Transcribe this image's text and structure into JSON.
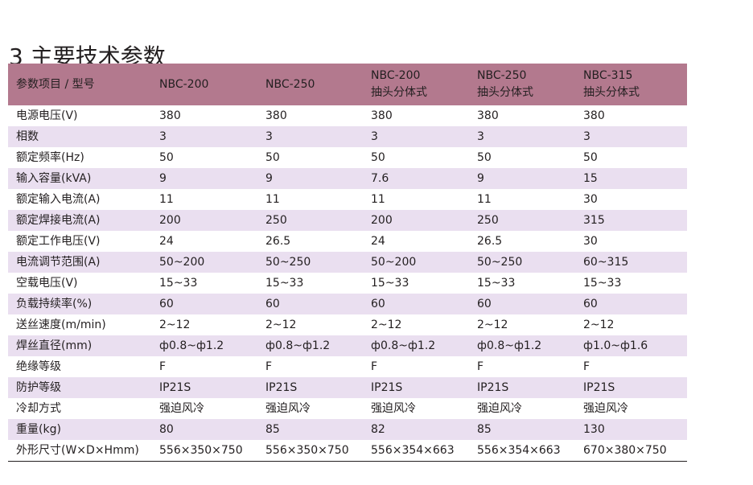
{
  "title": "3 主要技术参数",
  "table": {
    "header": [
      [
        "参数项目 / 型号"
      ],
      [
        "NBC-200"
      ],
      [
        "NBC-250"
      ],
      [
        "NBC-200",
        "抽头分体式"
      ],
      [
        "NBC-250",
        "抽头分体式"
      ],
      [
        "NBC-315",
        "抽头分体式"
      ]
    ],
    "rows": [
      [
        "电源电压(V)",
        "380",
        "380",
        "380",
        "380",
        "380"
      ],
      [
        "相数",
        "3",
        "3",
        "3",
        "3",
        "3"
      ],
      [
        "额定频率(Hz)",
        "50",
        "50",
        "50",
        "50",
        "50"
      ],
      [
        "输入容量(kVA)",
        "9",
        "9",
        "7.6",
        "9",
        "15"
      ],
      [
        "额定输入电流(A)",
        "11",
        "11",
        "11",
        "11",
        "30"
      ],
      [
        "额定焊接电流(A)",
        "200",
        "250",
        "200",
        "250",
        "315"
      ],
      [
        "额定工作电压(V)",
        "24",
        "26.5",
        "24",
        "26.5",
        "30"
      ],
      [
        "电流调节范围(A)",
        "50~200",
        "50~250",
        "50~200",
        "50~250",
        "60~315"
      ],
      [
        "空载电压(V)",
        "15~33",
        "15~33",
        "15~33",
        "15~33",
        "15~33"
      ],
      [
        "负载持续率(%)",
        "60",
        "60",
        "60",
        "60",
        "60"
      ],
      [
        "送丝速度(m/min)",
        "2~12",
        "2~12",
        "2~12",
        "2~12",
        "2~12"
      ],
      [
        "焊丝直径(mm)",
        "ф0.8~ф1.2",
        "ф0.8~ф1.2",
        "ф0.8~ф1.2",
        "ф0.8~ф1.2",
        "ф1.0~ф1.6"
      ],
      [
        "绝缘等级",
        "F",
        "F",
        "F",
        "F",
        "F"
      ],
      [
        "防护等级",
        "IP21S",
        "IP21S",
        "IP21S",
        "IP21S",
        "IP21S"
      ],
      [
        "冷却方式",
        "强迫风冷",
        "强迫风冷",
        "强迫风冷",
        "强迫风冷",
        "强迫风冷"
      ],
      [
        "重量(kg)",
        "80",
        "85",
        "82",
        "85",
        "130"
      ],
      [
        "外形尺寸(W×D×Hmm)",
        "556×350×750",
        "556×350×750",
        "556×354×663",
        "556×354×663",
        "670×380×750"
      ]
    ]
  },
  "colors": {
    "header_bg": "#b3798e",
    "stripe_bg": "#eadff0",
    "text": "#231f20"
  }
}
